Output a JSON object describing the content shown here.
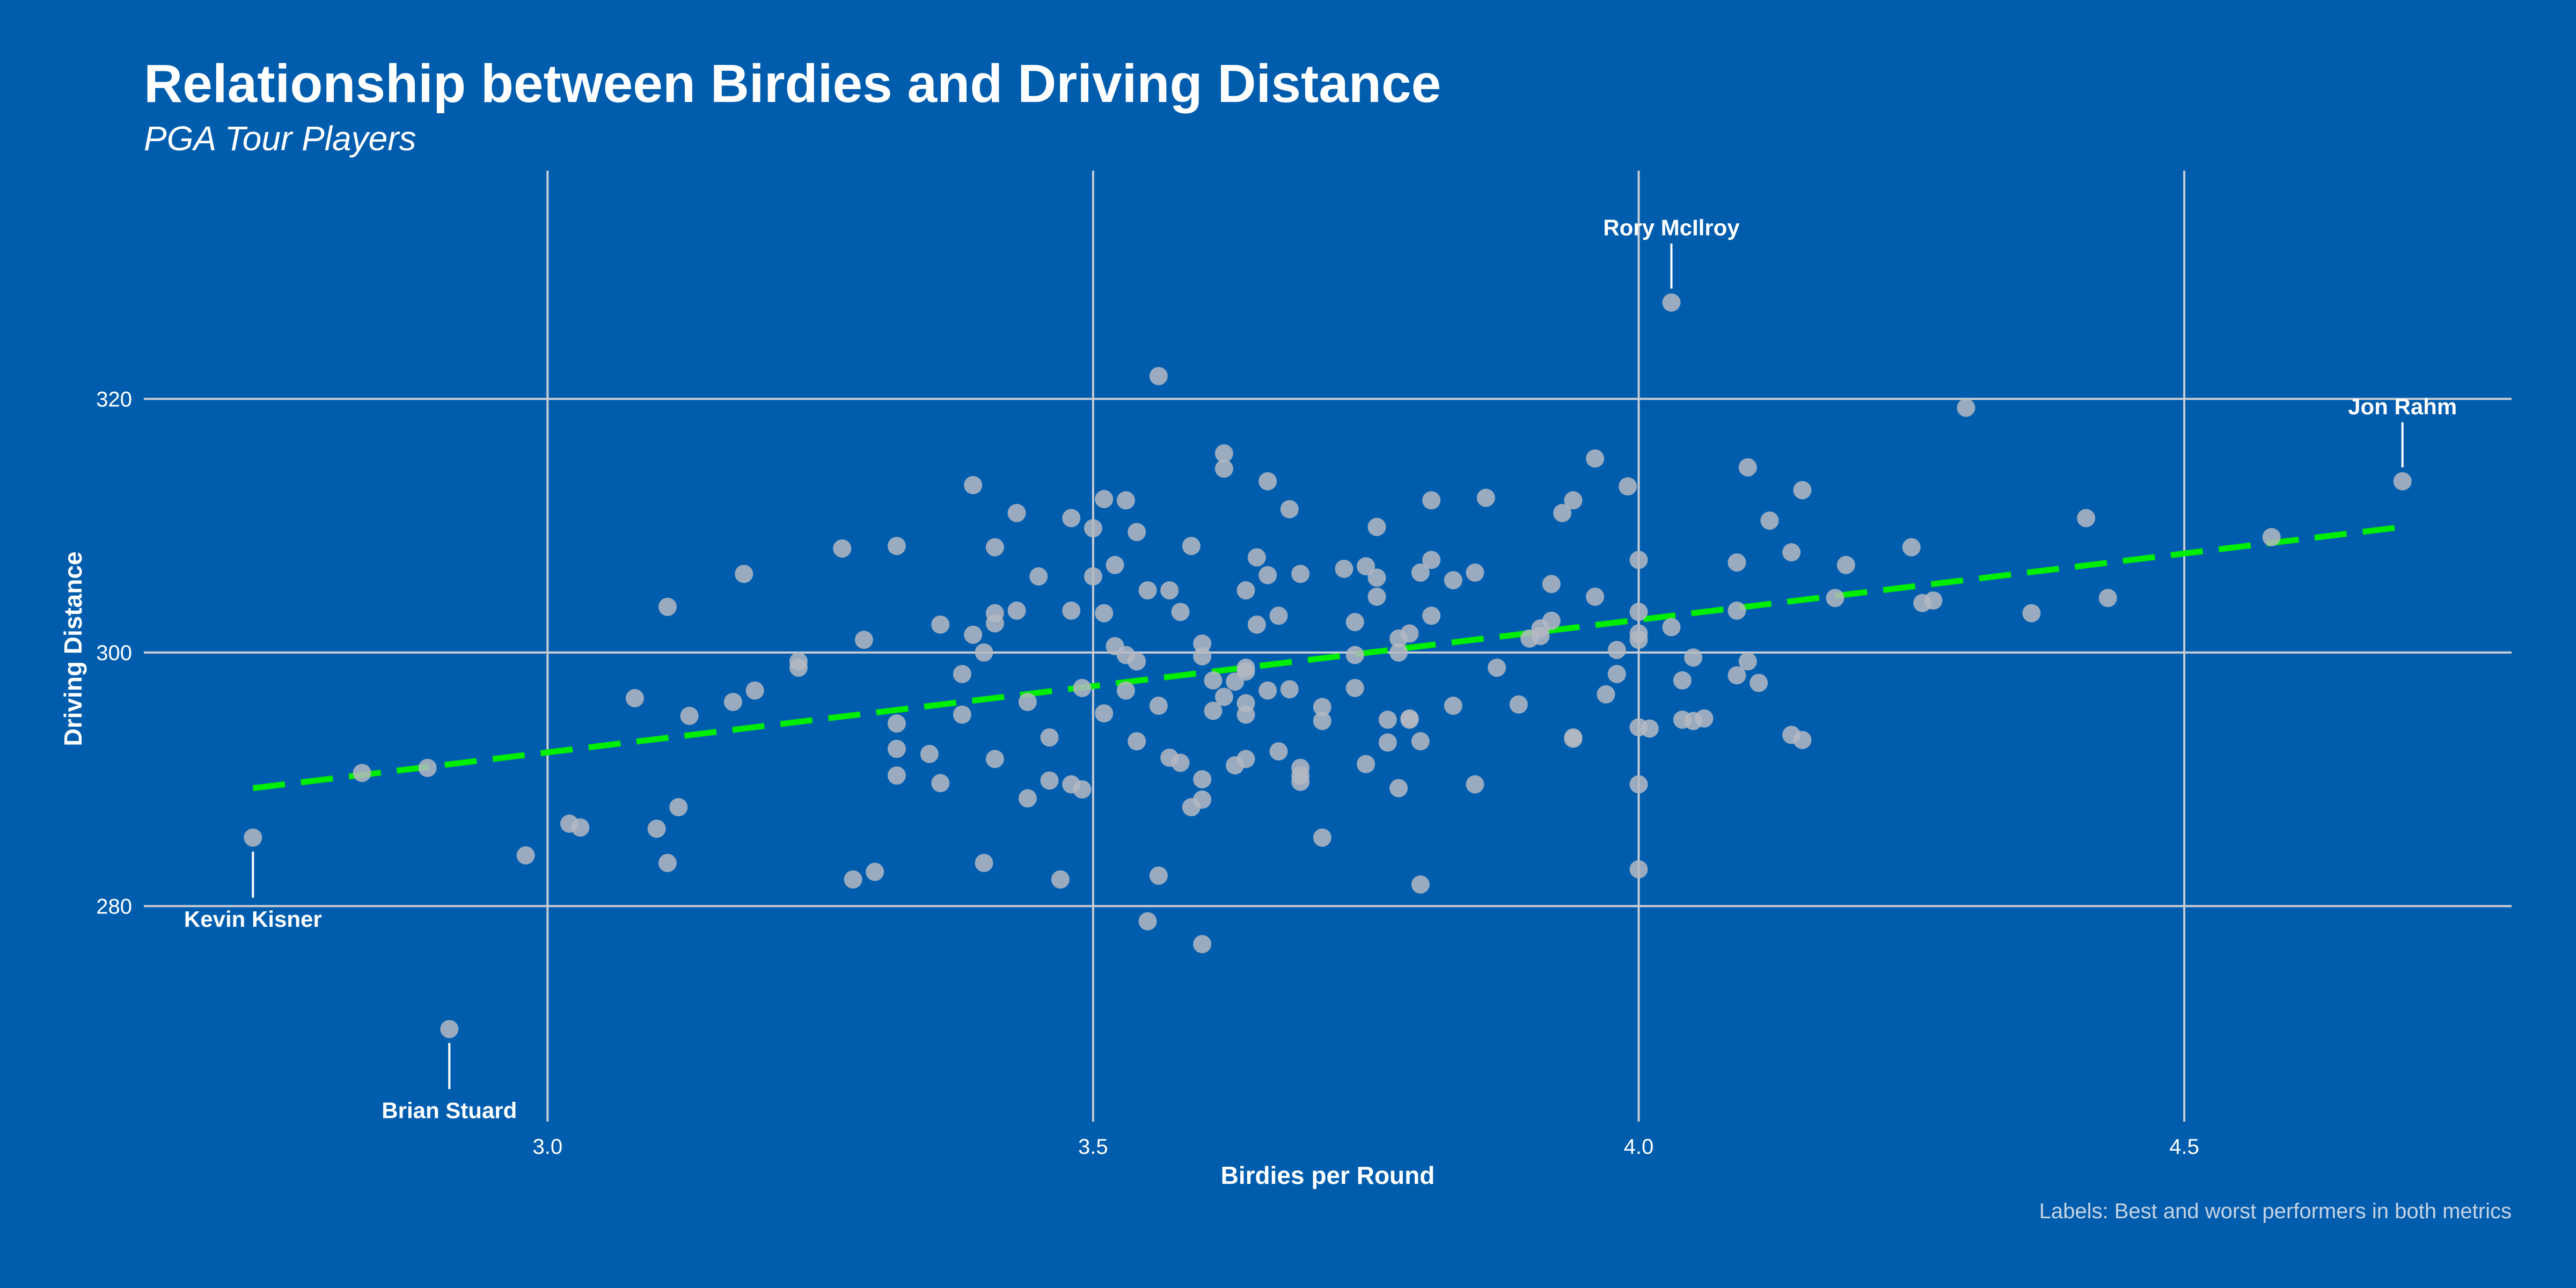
{
  "colors": {
    "background": "#005DAE",
    "point": "#B5B9C2",
    "trend_line": "#00EE00",
    "grid": "#C9CCD2",
    "text": "#FFFFFF",
    "caption": "#C7D3E3"
  },
  "chart_data": {
    "type": "scatter",
    "title": "Relationship between Birdies and Driving Distance",
    "subtitle": "PGA Tour Players",
    "xlabel": "Birdies per Round",
    "ylabel": "Driving Distance",
    "caption": "Labels: Best and worst performers in both metrics",
    "xlim": [
      2.63,
      4.8
    ],
    "ylim": [
      263,
      338
    ],
    "x_ticks": [
      3.0,
      3.5,
      4.0,
      4.5
    ],
    "x_tick_labels": [
      "3.0",
      "3.5",
      "4.0",
      "4.5"
    ],
    "y_ticks": [
      280,
      300,
      320
    ],
    "y_tick_labels": [
      "280",
      "300",
      "320"
    ],
    "grid": true,
    "legend": "none",
    "trend_line": {
      "style": "dashed",
      "x": [
        2.73,
        4.7
      ],
      "y": [
        289.3,
        309.9
      ]
    },
    "labels": [
      {
        "name": "Rory McIlroy",
        "x": 4.03,
        "y": 327.6,
        "position": "above"
      },
      {
        "name": "Jon Rahm",
        "x": 4.7,
        "y": 313.5,
        "position": "above"
      },
      {
        "name": "Kevin Kisner",
        "x": 2.73,
        "y": 285.4,
        "position": "below"
      },
      {
        "name": "Brian Stuard",
        "x": 2.91,
        "y": 270.3,
        "position": "below"
      }
    ],
    "points": [
      [
        2.73,
        285.4
      ],
      [
        2.91,
        270.3
      ],
      [
        4.03,
        327.6
      ],
      [
        4.7,
        313.5
      ],
      [
        2.83,
        290.5
      ],
      [
        2.89,
        290.9
      ],
      [
        2.98,
        284.0
      ],
      [
        3.02,
        286.5
      ],
      [
        3.03,
        286.2
      ],
      [
        3.08,
        296.4
      ],
      [
        3.1,
        286.1
      ],
      [
        3.11,
        283.4
      ],
      [
        3.11,
        303.6
      ],
      [
        3.12,
        287.8
      ],
      [
        3.13,
        295.0
      ],
      [
        3.17,
        296.1
      ],
      [
        3.18,
        306.2
      ],
      [
        3.19,
        297.0
      ],
      [
        3.23,
        299.3
      ],
      [
        3.23,
        298.8
      ],
      [
        3.27,
        308.2
      ],
      [
        3.28,
        282.1
      ],
      [
        3.29,
        301.0
      ],
      [
        3.3,
        282.7
      ],
      [
        3.32,
        308.4
      ],
      [
        3.32,
        294.4
      ],
      [
        3.32,
        292.4
      ],
      [
        3.32,
        290.3
      ],
      [
        3.35,
        292.0
      ],
      [
        3.36,
        302.2
      ],
      [
        3.36,
        289.7
      ],
      [
        3.38,
        298.3
      ],
      [
        3.38,
        295.1
      ],
      [
        3.39,
        313.2
      ],
      [
        3.39,
        301.4
      ],
      [
        3.4,
        300.0
      ],
      [
        3.4,
        283.4
      ],
      [
        3.41,
        308.3
      ],
      [
        3.41,
        303.1
      ],
      [
        3.41,
        302.3
      ],
      [
        3.41,
        291.6
      ],
      [
        3.43,
        311.0
      ],
      [
        3.43,
        303.3
      ],
      [
        3.44,
        296.1
      ],
      [
        3.44,
        288.5
      ],
      [
        3.45,
        306.0
      ],
      [
        3.46,
        293.3
      ],
      [
        3.46,
        289.9
      ],
      [
        3.47,
        282.1
      ],
      [
        3.48,
        310.6
      ],
      [
        3.48,
        303.3
      ],
      [
        3.48,
        289.6
      ],
      [
        3.49,
        297.2
      ],
      [
        3.49,
        289.2
      ],
      [
        3.5,
        309.8
      ],
      [
        3.5,
        306.0
      ],
      [
        3.51,
        312.1
      ],
      [
        3.51,
        303.1
      ],
      [
        3.51,
        295.2
      ],
      [
        3.52,
        306.9
      ],
      [
        3.52,
        300.5
      ],
      [
        3.53,
        312.0
      ],
      [
        3.53,
        299.8
      ],
      [
        3.53,
        297.0
      ],
      [
        3.54,
        309.5
      ],
      [
        3.54,
        299.3
      ],
      [
        3.54,
        293.0
      ],
      [
        3.55,
        304.9
      ],
      [
        3.55,
        278.8
      ],
      [
        3.56,
        321.8
      ],
      [
        3.56,
        295.8
      ],
      [
        3.56,
        282.4
      ],
      [
        3.57,
        304.9
      ],
      [
        3.57,
        291.7
      ],
      [
        3.58,
        303.2
      ],
      [
        3.58,
        291.3
      ],
      [
        3.59,
        308.4
      ],
      [
        3.59,
        287.8
      ],
      [
        3.6,
        300.7
      ],
      [
        3.6,
        299.7
      ],
      [
        3.6,
        290.0
      ],
      [
        3.6,
        288.4
      ],
      [
        3.6,
        277.0
      ],
      [
        3.61,
        297.8
      ],
      [
        3.61,
        295.4
      ],
      [
        3.62,
        315.7
      ],
      [
        3.62,
        314.5
      ],
      [
        3.62,
        296.5
      ],
      [
        3.63,
        297.7
      ],
      [
        3.63,
        291.1
      ],
      [
        3.64,
        304.9
      ],
      [
        3.64,
        298.8
      ],
      [
        3.64,
        298.5
      ],
      [
        3.64,
        296.0
      ],
      [
        3.64,
        295.1
      ],
      [
        3.64,
        291.6
      ],
      [
        3.65,
        307.5
      ],
      [
        3.65,
        302.2
      ],
      [
        3.66,
        313.5
      ],
      [
        3.66,
        306.1
      ],
      [
        3.66,
        297.0
      ],
      [
        3.67,
        302.9
      ],
      [
        3.67,
        292.2
      ],
      [
        3.68,
        311.3
      ],
      [
        3.68,
        297.1
      ],
      [
        3.69,
        306.2
      ],
      [
        3.69,
        290.9
      ],
      [
        3.69,
        290.3
      ],
      [
        3.69,
        289.8
      ],
      [
        3.71,
        295.7
      ],
      [
        3.71,
        294.6
      ],
      [
        3.71,
        285.4
      ],
      [
        3.73,
        306.6
      ],
      [
        3.74,
        302.4
      ],
      [
        3.74,
        299.8
      ],
      [
        3.74,
        297.2
      ],
      [
        3.75,
        306.8
      ],
      [
        3.75,
        291.2
      ],
      [
        3.76,
        309.9
      ],
      [
        3.76,
        305.9
      ],
      [
        3.76,
        304.4
      ],
      [
        3.77,
        294.7
      ],
      [
        3.77,
        292.9
      ],
      [
        3.78,
        301.1
      ],
      [
        3.78,
        300.0
      ],
      [
        3.78,
        289.3
      ],
      [
        3.79,
        301.5
      ],
      [
        3.79,
        294.8
      ],
      [
        3.79,
        294.7
      ],
      [
        3.8,
        306.3
      ],
      [
        3.8,
        293.0
      ],
      [
        3.8,
        281.7
      ],
      [
        3.81,
        312.0
      ],
      [
        3.81,
        307.3
      ],
      [
        3.81,
        302.9
      ],
      [
        3.83,
        305.7
      ],
      [
        3.83,
        295.8
      ],
      [
        3.85,
        306.3
      ],
      [
        3.85,
        289.6
      ],
      [
        3.86,
        312.2
      ],
      [
        3.87,
        298.8
      ],
      [
        3.89,
        295.9
      ],
      [
        3.9,
        301.1
      ],
      [
        3.91,
        301.9
      ],
      [
        3.91,
        301.3
      ],
      [
        3.92,
        305.4
      ],
      [
        3.92,
        302.5
      ],
      [
        3.93,
        311.0
      ],
      [
        3.94,
        312.0
      ],
      [
        3.94,
        293.3
      ],
      [
        3.94,
        293.2
      ],
      [
        3.96,
        315.3
      ],
      [
        3.96,
        304.4
      ],
      [
        3.97,
        296.7
      ],
      [
        3.98,
        300.2
      ],
      [
        3.98,
        298.3
      ],
      [
        3.99,
        313.1
      ],
      [
        4.0,
        307.3
      ],
      [
        4.0,
        303.2
      ],
      [
        4.0,
        301.5
      ],
      [
        4.0,
        301.0
      ],
      [
        4.0,
        294.1
      ],
      [
        4.0,
        289.6
      ],
      [
        4.0,
        282.9
      ],
      [
        4.01,
        294.0
      ],
      [
        4.03,
        302.0
      ],
      [
        4.04,
        297.8
      ],
      [
        4.04,
        294.7
      ],
      [
        4.05,
        299.6
      ],
      [
        4.05,
        294.6
      ],
      [
        4.06,
        294.8
      ],
      [
        4.09,
        307.1
      ],
      [
        4.09,
        303.3
      ],
      [
        4.09,
        298.2
      ],
      [
        4.1,
        314.6
      ],
      [
        4.1,
        299.3
      ],
      [
        4.11,
        297.6
      ],
      [
        4.12,
        310.4
      ],
      [
        4.14,
        307.9
      ],
      [
        4.14,
        293.5
      ],
      [
        4.15,
        312.8
      ],
      [
        4.15,
        293.1
      ],
      [
        4.18,
        304.3
      ],
      [
        4.19,
        306.9
      ],
      [
        4.25,
        308.3
      ],
      [
        4.26,
        303.9
      ],
      [
        4.27,
        304.1
      ],
      [
        4.3,
        319.3
      ],
      [
        4.36,
        303.1
      ],
      [
        4.41,
        310.6
      ],
      [
        4.43,
        304.3
      ],
      [
        4.58,
        309.1
      ]
    ]
  }
}
